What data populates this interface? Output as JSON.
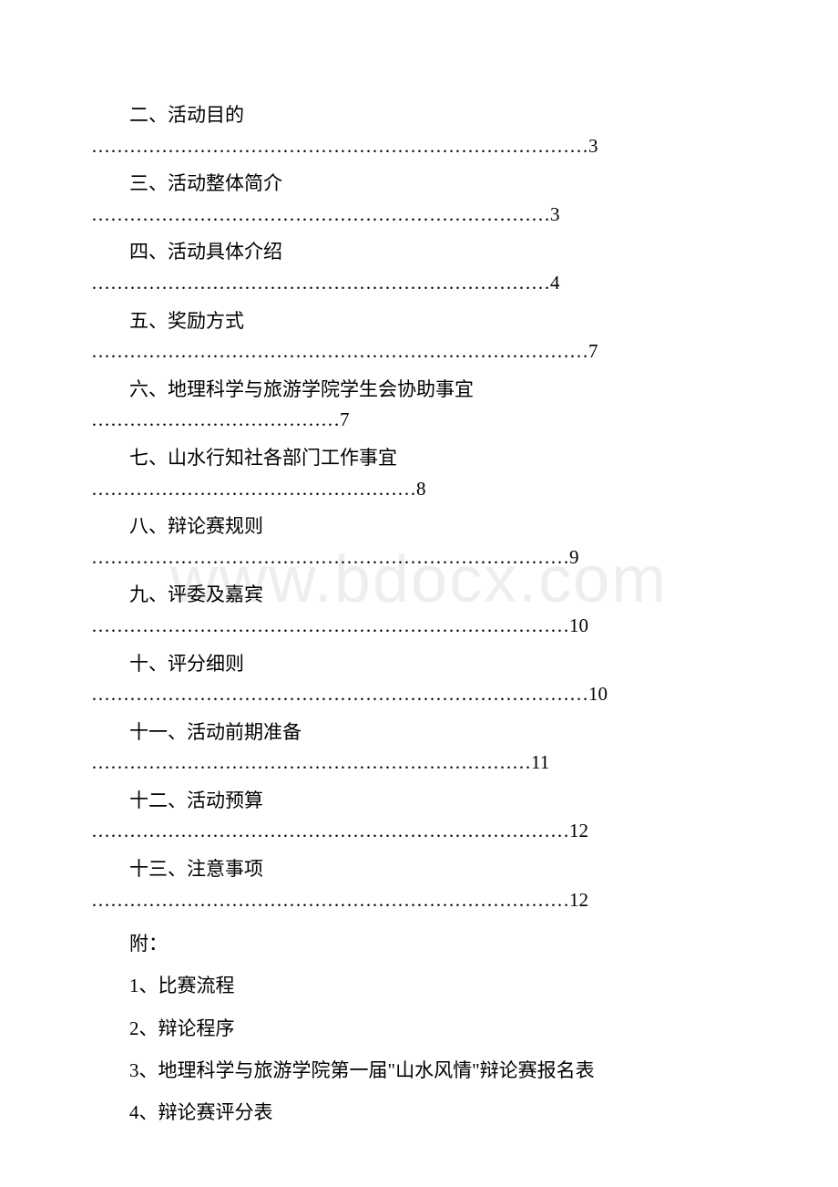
{
  "watermark": "www.bdocx.com",
  "toc": [
    {
      "title": "二、活动目的",
      "dots": "……………………………………………………………………3"
    },
    {
      "title": "三、活动整体简介",
      "dots": "………………………………………………………………3"
    },
    {
      "title": "四、活动具体介绍",
      "dots": "………………………………………………………………4"
    },
    {
      "title": "五、奖励方式",
      "dots": "……………………………………………………………………7"
    },
    {
      "title": "六、地理科学与旅游学院学生会协助事宜",
      "dots": "…………………………………7",
      "single": true
    },
    {
      "title": "七、山水行知社各部门工作事宜",
      "dots": "……………………………………………8",
      "single": true
    },
    {
      "title": "八、辩论赛规则",
      "dots": "…………………………………………………………………9"
    },
    {
      "title": "九、评委及嘉宾",
      "dots": "…………………………………………………………………10"
    },
    {
      "title": "十、评分细则",
      "dots": "……………………………………………………………………10"
    },
    {
      "title": "十一、活动前期准备",
      "dots": "……………………………………………………………11"
    },
    {
      "title": "十二、活动预算",
      "dots": "…………………………………………………………………12"
    },
    {
      "title": "十三、注意事项",
      "dots": "…………………………………………………………………12"
    }
  ],
  "appendix": {
    "header": "附：",
    "items": [
      "1、比赛流程",
      "2、辩论程序",
      "3、地理科学与旅游学院第一届\"山水风情\"辩论赛报名表",
      "4、辩论赛评分表"
    ]
  }
}
